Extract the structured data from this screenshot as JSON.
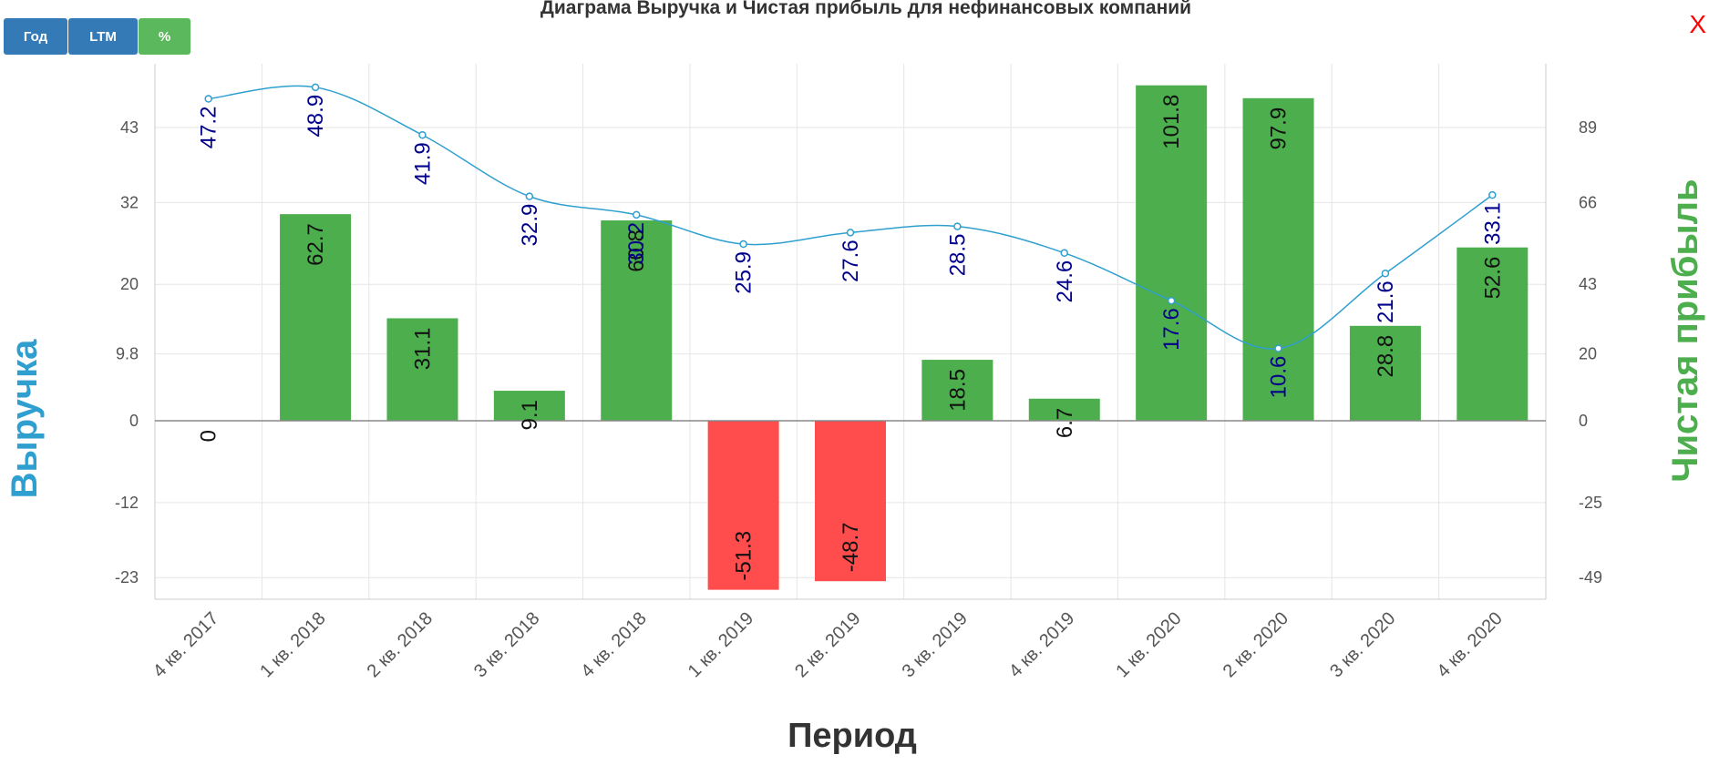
{
  "toolbar": {
    "year_label": "Год",
    "ltm_label": "LTM",
    "pct_label": "%"
  },
  "close_label": "X",
  "colors": {
    "revenue": "#2f9fd0",
    "profit_pos": "#4cae4c",
    "profit_neg": "#ff4c4c",
    "revenue_label": "#00008b",
    "btn_blue": "#337ab7",
    "btn_green": "#5cb85c"
  },
  "chart_data": {
    "type": "bar+line",
    "title": "Диаграма Выручка и Чистая прибыль для нефинансовых компаний",
    "xlabel": "Период",
    "ylabel_left": "Выручка",
    "ylabel_right": "Чистая прибыль",
    "categories": [
      "4 кв. 2017",
      "1 кв. 2018",
      "2 кв. 2018",
      "3 кв. 2018",
      "4 кв. 2018",
      "1 кв. 2019",
      "2 кв. 2019",
      "3 кв. 2019",
      "4 кв. 2019",
      "1 кв. 2020",
      "2 кв. 2020",
      "3 кв. 2020",
      "4 кв. 2020"
    ],
    "revenue_ticks": [
      "43",
      "32",
      "20",
      "9.8",
      "0",
      "-12",
      "-23"
    ],
    "profit_ticks": [
      "89",
      "66",
      "43",
      "20",
      "0",
      "-25",
      "-49"
    ],
    "revenue_axis": {
      "min": -28,
      "max": 53.5
    },
    "profit_axis": {
      "min": -57,
      "max": 111
    },
    "grid": true,
    "series": [
      {
        "name": "Выручка",
        "kind": "line",
        "values": [
          47.2,
          48.9,
          41.9,
          32.9,
          30.2,
          25.9,
          27.6,
          28.5,
          24.6,
          17.6,
          10.6,
          21.6,
          33.1
        ]
      },
      {
        "name": "Чистая прибыль",
        "kind": "bar",
        "values": [
          0,
          62.7,
          31.1,
          9.1,
          60.8,
          -51.3,
          -48.7,
          18.5,
          6.7,
          101.8,
          97.9,
          28.8,
          52.6
        ]
      }
    ]
  }
}
